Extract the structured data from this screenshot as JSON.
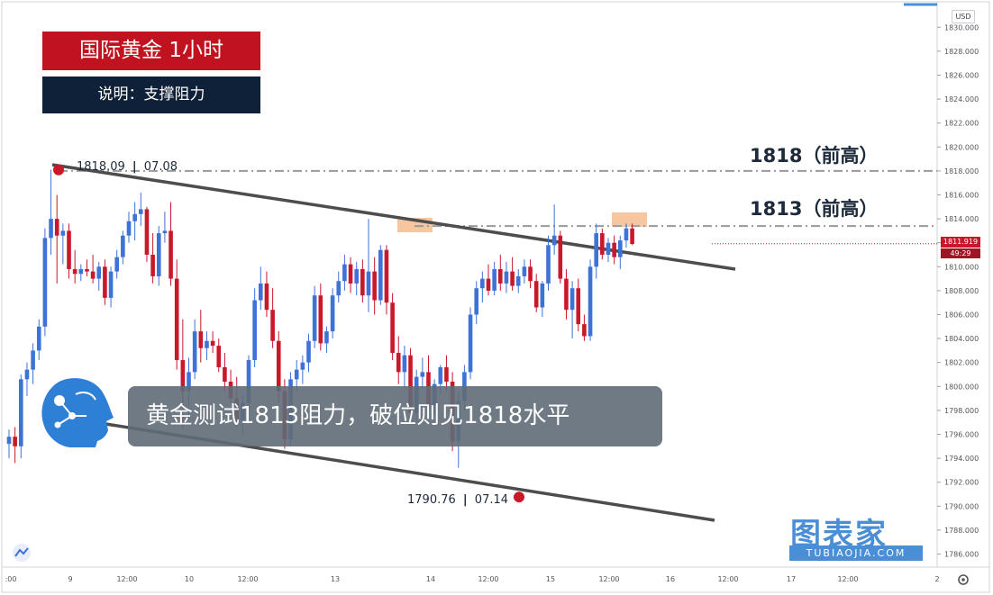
{
  "title_box": "国际黄金  1小时",
  "subtitle_box": "说明：支撑阻力",
  "banner": "黄金测试1813阻力，破位则见1818水平",
  "levels": [
    {
      "label": "1818（前高）",
      "price": 1818
    },
    {
      "label": "1813（前高）",
      "price": 1813.4
    }
  ],
  "point_high": {
    "price": "1818.09",
    "date": "07.08",
    "value": 1818.09
  },
  "point_low": {
    "price": "1790.76",
    "date": "07.14",
    "value": 1790.76
  },
  "current_price": "1811.919",
  "countdown": "49:29",
  "currency": "USD",
  "watermark": {
    "main": "图表家",
    "sub": "TUBIAOJIA.COM"
  },
  "colors": {
    "up": "#3d72d6",
    "down": "#c8182a",
    "title_bg": "#c1121f",
    "subtitle_bg": "#0f2138",
    "channel": "#4d4d4d",
    "level_line": "#9a9a9a",
    "highlight": "#f4b88a"
  },
  "chart_data": {
    "type": "candlestick",
    "symbol": "国际黄金",
    "timeframe": "1小时",
    "ylim": [
      1785,
      1831
    ],
    "y_ticks": [
      "1786.000",
      "1788.000",
      "1790.000",
      "1792.000",
      "1794.000",
      "1796.000",
      "1798.000",
      "1800.000",
      "1802.000",
      "1804.000",
      "1806.000",
      "1808.000",
      "1810.000",
      "1812.000",
      "1814.000",
      "1816.000",
      "1818.000",
      "1820.000",
      "1822.000",
      "1824.000",
      "1826.000",
      "1828.000",
      "1830.000"
    ],
    "x_ticks": [
      ":00",
      "9",
      "12:00",
      "10",
      "12:00",
      "13",
      "14",
      "12:00",
      "15",
      "12:00",
      "16",
      "12:00",
      "17",
      "12:00",
      "2"
    ],
    "ohlc": [
      [
        1795.2,
        1796.4,
        1794.0,
        1795.8
      ],
      [
        1795.8,
        1796.6,
        1793.6,
        1795.0
      ],
      [
        1795.0,
        1801.0,
        1794.0,
        1800.6
      ],
      [
        1800.6,
        1802.0,
        1799.2,
        1801.4
      ],
      [
        1801.4,
        1803.6,
        1800.2,
        1803.0
      ],
      [
        1803.0,
        1805.6,
        1802.2,
        1805.0
      ],
      [
        1805.0,
        1813.2,
        1804.2,
        1812.4
      ],
      [
        1812.4,
        1818.1,
        1811.0,
        1814.0
      ],
      [
        1814.0,
        1816.0,
        1808.6,
        1812.6
      ],
      [
        1812.6,
        1813.6,
        1810.2,
        1813.0
      ],
      [
        1813.0,
        1813.6,
        1809.0,
        1809.8
      ],
      [
        1809.8,
        1811.4,
        1808.6,
        1809.4
      ],
      [
        1809.4,
        1810.2,
        1808.8,
        1809.8
      ],
      [
        1809.8,
        1810.6,
        1809.2,
        1809.6
      ],
      [
        1809.6,
        1811.0,
        1808.6,
        1809.0
      ],
      [
        1809.0,
        1810.4,
        1808.0,
        1810.0
      ],
      [
        1810.0,
        1810.6,
        1806.8,
        1807.4
      ],
      [
        1807.4,
        1810.0,
        1806.6,
        1809.6
      ],
      [
        1809.6,
        1811.4,
        1809.0,
        1810.8
      ],
      [
        1810.8,
        1813.0,
        1810.2,
        1812.6
      ],
      [
        1812.6,
        1814.6,
        1812.0,
        1813.8
      ],
      [
        1813.8,
        1815.4,
        1812.2,
        1814.4
      ],
      [
        1814.4,
        1816.2,
        1813.4,
        1814.8
      ],
      [
        1814.8,
        1815.0,
        1810.4,
        1811.0
      ],
      [
        1811.0,
        1812.8,
        1808.6,
        1809.2
      ],
      [
        1809.2,
        1813.4,
        1808.4,
        1812.8
      ],
      [
        1812.8,
        1814.6,
        1812.0,
        1813.0
      ],
      [
        1813.0,
        1815.4,
        1808.4,
        1809.0
      ],
      [
        1809.0,
        1810.6,
        1801.4,
        1802.2
      ],
      [
        1802.2,
        1805.6,
        1796.4,
        1799.6
      ],
      [
        1799.6,
        1802.4,
        1797.2,
        1801.2
      ],
      [
        1801.2,
        1805.6,
        1800.6,
        1804.6
      ],
      [
        1804.6,
        1806.4,
        1802.0,
        1803.2
      ],
      [
        1803.2,
        1804.6,
        1802.2,
        1803.8
      ],
      [
        1803.8,
        1804.6,
        1802.8,
        1803.4
      ],
      [
        1803.4,
        1804.0,
        1801.2,
        1801.6
      ],
      [
        1801.6,
        1802.8,
        1799.6,
        1800.4
      ],
      [
        1800.4,
        1801.4,
        1798.6,
        1799.0
      ],
      [
        1799.0,
        1800.8,
        1796.6,
        1797.2
      ],
      [
        1797.2,
        1799.2,
        1796.0,
        1798.6
      ],
      [
        1798.6,
        1802.6,
        1798.0,
        1802.2
      ],
      [
        1802.2,
        1808.2,
        1801.6,
        1807.2
      ],
      [
        1807.2,
        1810.0,
        1806.4,
        1808.6
      ],
      [
        1808.6,
        1809.6,
        1805.8,
        1806.4
      ],
      [
        1806.4,
        1808.2,
        1803.2,
        1803.8
      ],
      [
        1803.8,
        1804.6,
        1798.6,
        1799.6
      ],
      [
        1799.6,
        1800.6,
        1794.8,
        1795.6
      ],
      [
        1795.6,
        1801.2,
        1795.0,
        1800.6
      ],
      [
        1800.6,
        1802.2,
        1799.6,
        1801.4
      ],
      [
        1801.4,
        1802.6,
        1800.2,
        1802.0
      ],
      [
        1802.0,
        1804.4,
        1801.2,
        1803.8
      ],
      [
        1803.8,
        1808.4,
        1803.2,
        1807.6
      ],
      [
        1807.6,
        1808.6,
        1803.0,
        1803.6
      ],
      [
        1803.6,
        1805.0,
        1802.8,
        1804.6
      ],
      [
        1804.6,
        1808.2,
        1804.0,
        1807.6
      ],
      [
        1807.6,
        1809.6,
        1807.0,
        1808.8
      ],
      [
        1808.8,
        1811.0,
        1808.0,
        1810.2
      ],
      [
        1810.2,
        1810.8,
        1807.8,
        1808.6
      ],
      [
        1808.6,
        1810.4,
        1807.6,
        1809.8
      ],
      [
        1809.8,
        1810.6,
        1807.0,
        1807.6
      ],
      [
        1807.6,
        1814.0,
        1806.2,
        1809.6
      ],
      [
        1809.6,
        1810.8,
        1806.0,
        1807.2
      ],
      [
        1807.2,
        1811.8,
        1806.8,
        1811.4
      ],
      [
        1811.4,
        1811.8,
        1806.0,
        1807.0
      ],
      [
        1807.0,
        1807.8,
        1802.2,
        1802.8
      ],
      [
        1802.8,
        1804.2,
        1800.2,
        1801.2
      ],
      [
        1801.2,
        1803.4,
        1800.0,
        1802.6
      ],
      [
        1802.6,
        1803.2,
        1797.2,
        1797.8
      ],
      [
        1797.8,
        1801.4,
        1797.0,
        1800.8
      ],
      [
        1800.8,
        1802.4,
        1799.8,
        1801.2
      ],
      [
        1801.2,
        1802.6,
        1797.8,
        1798.4
      ],
      [
        1798.4,
        1800.6,
        1797.6,
        1800.2
      ],
      [
        1800.2,
        1801.8,
        1799.4,
        1801.6
      ],
      [
        1801.6,
        1802.6,
        1799.6,
        1800.4
      ],
      [
        1800.4,
        1801.2,
        1794.6,
        1795.4
      ],
      [
        1795.4,
        1799.6,
        1793.2,
        1798.8
      ],
      [
        1798.8,
        1801.8,
        1798.0,
        1801.2
      ],
      [
        1801.2,
        1806.6,
        1800.6,
        1806.0
      ],
      [
        1806.0,
        1808.8,
        1805.2,
        1808.2
      ],
      [
        1808.2,
        1809.6,
        1807.0,
        1809.0
      ],
      [
        1809.0,
        1810.2,
        1807.6,
        1808.0
      ],
      [
        1808.0,
        1810.4,
        1807.6,
        1809.8
      ],
      [
        1809.8,
        1811.0,
        1808.0,
        1808.6
      ],
      [
        1808.6,
        1810.4,
        1807.8,
        1809.6
      ],
      [
        1809.6,
        1810.8,
        1808.0,
        1808.4
      ],
      [
        1808.4,
        1809.8,
        1807.8,
        1809.2
      ],
      [
        1809.2,
        1810.6,
        1808.6,
        1810.0
      ],
      [
        1810.0,
        1810.6,
        1808.2,
        1808.8
      ],
      [
        1808.8,
        1809.4,
        1806.2,
        1806.6
      ],
      [
        1806.6,
        1808.8,
        1805.8,
        1808.6
      ],
      [
        1808.6,
        1812.6,
        1808.0,
        1811.8
      ],
      [
        1811.8,
        1815.2,
        1811.0,
        1812.6
      ],
      [
        1812.6,
        1813.0,
        1808.6,
        1809.0
      ],
      [
        1809.0,
        1809.8,
        1805.6,
        1806.4
      ],
      [
        1806.4,
        1808.8,
        1804.0,
        1808.2
      ],
      [
        1808.2,
        1809.0,
        1804.6,
        1805.2
      ],
      [
        1805.2,
        1806.0,
        1803.8,
        1804.2
      ],
      [
        1804.2,
        1810.6,
        1803.8,
        1810.0
      ],
      [
        1810.0,
        1813.6,
        1809.0,
        1812.8
      ],
      [
        1812.8,
        1813.2,
        1810.6,
        1811.0
      ],
      [
        1811.0,
        1812.4,
        1810.4,
        1812.0
      ],
      [
        1812.0,
        1812.6,
        1810.2,
        1810.8
      ],
      [
        1810.8,
        1812.6,
        1809.8,
        1812.2
      ],
      [
        1812.2,
        1813.6,
        1811.6,
        1813.2
      ],
      [
        1813.2,
        1813.6,
        1811.8,
        1811.9
      ]
    ]
  }
}
